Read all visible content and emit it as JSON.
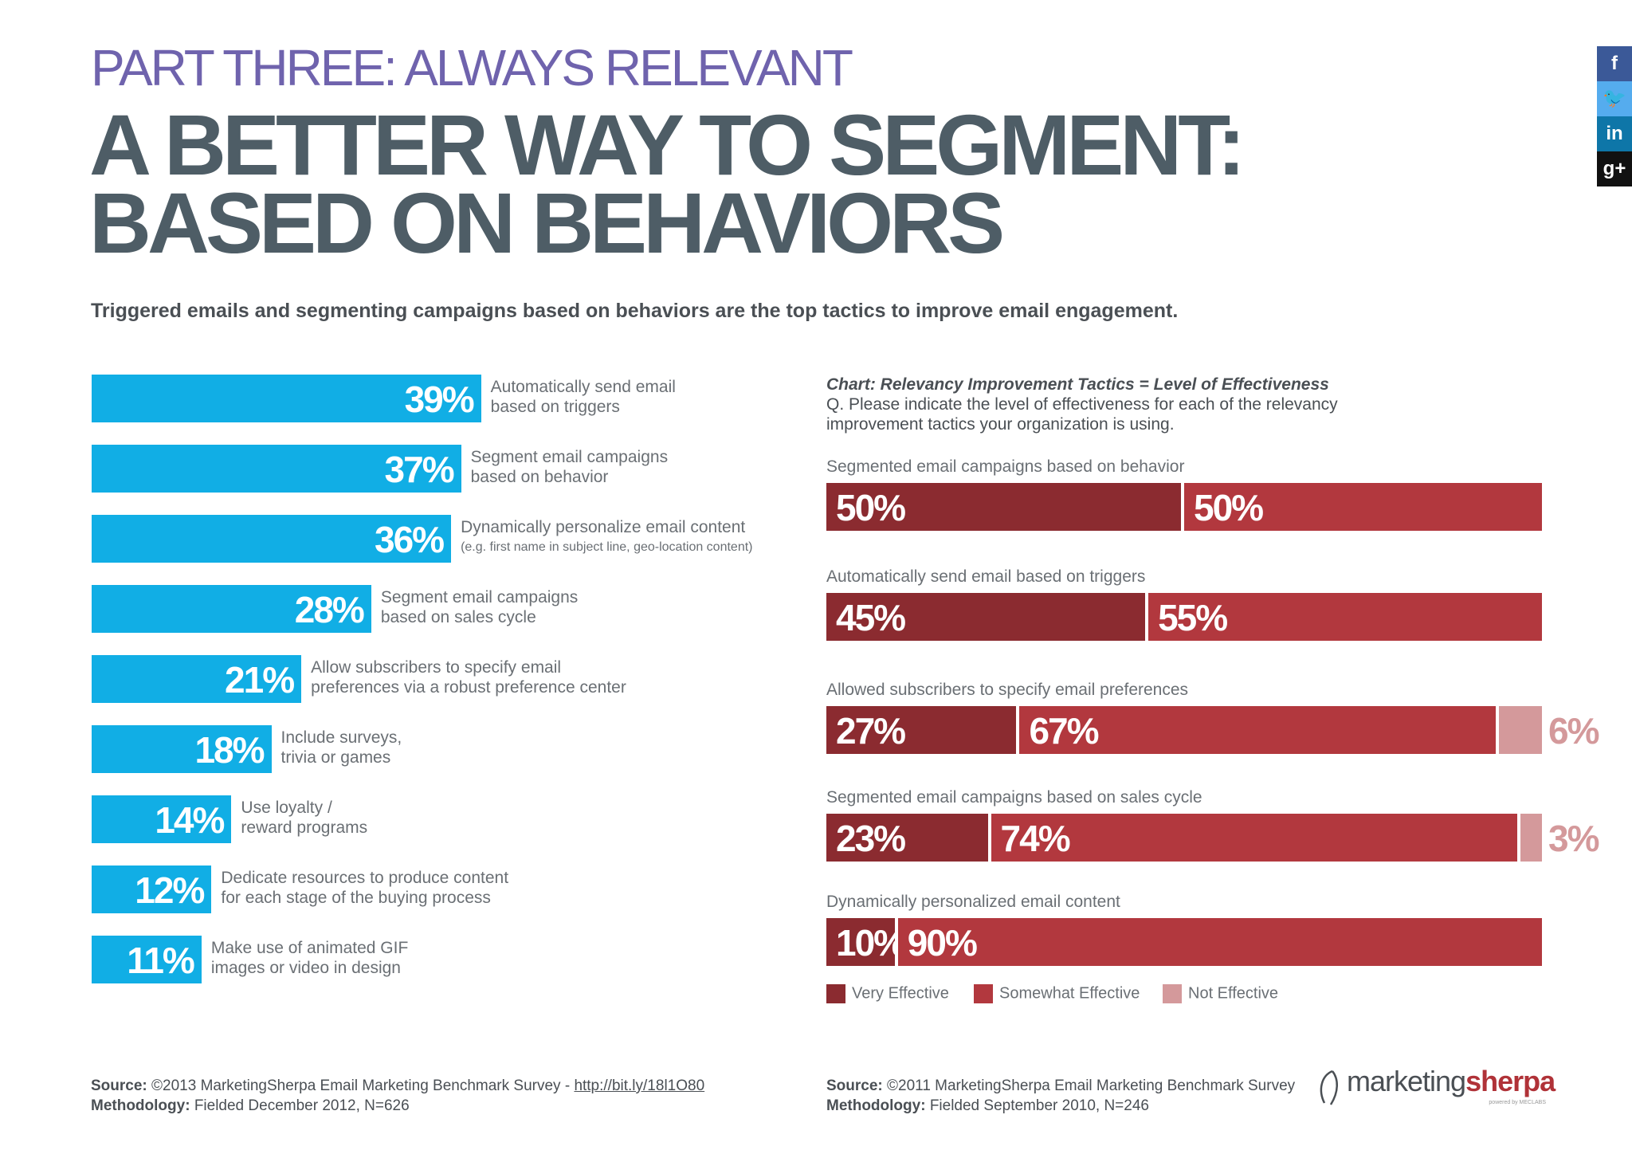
{
  "header": {
    "part": "PART THREE: ALWAYS RELEVANT",
    "title_line1": "A BETTER WAY TO SEGMENT:",
    "title_line2": "BASED ON BEHAVIORS",
    "intro": "Triggered emails and segmenting campaigns based on behaviors are the top tactics to improve email engagement."
  },
  "social": [
    {
      "icon": "facebook-icon",
      "glyph": "f",
      "color": "#3b5998"
    },
    {
      "icon": "twitter-icon",
      "glyph": "🐦",
      "color": "#55acee"
    },
    {
      "icon": "linkedin-icon",
      "glyph": "in",
      "color": "#0e76a8"
    },
    {
      "icon": "google-plus-icon",
      "glyph": "g+",
      "color": "#111111"
    }
  ],
  "chart_data": [
    {
      "type": "bar",
      "orientation": "horizontal",
      "color": "#11aee5",
      "categories": [
        "Automatically send email based on triggers",
        "Segment email campaigns based on behavior",
        "Dynamically personalize email content (e.g. first name in subject line, geo-location content)",
        "Segment email campaigns based on sales cycle",
        "Allow subscribers to specify email preferences via a robust preference center",
        "Include surveys, trivia or games",
        "Use loyalty / reward programs",
        "Dedicate resources to produce content for each stage of the buying process",
        "Make use of animated GIF images or video in design"
      ],
      "values": [
        39,
        37,
        36,
        28,
        21,
        18,
        14,
        12,
        11
      ],
      "labels": [
        {
          "line1": "Automatically send email",
          "line2": "based on triggers",
          "sub": ""
        },
        {
          "line1": "Segment email campaigns",
          "line2": "based on behavior",
          "sub": ""
        },
        {
          "line1": "Dynamically personalize email content",
          "line2": "",
          "sub": "(e.g. first name in subject line, geo-location content)"
        },
        {
          "line1": "Segment email campaigns",
          "line2": "based on sales cycle",
          "sub": ""
        },
        {
          "line1": "Allow subscribers to specify email",
          "line2": "preferences via a robust preference center",
          "sub": ""
        },
        {
          "line1": "Include surveys,",
          "line2": "trivia or games",
          "sub": ""
        },
        {
          "line1": "Use loyalty /",
          "line2": "reward programs",
          "sub": ""
        },
        {
          "line1": "Dedicate resources to produce content",
          "line2": "for each stage of the buying process",
          "sub": ""
        },
        {
          "line1": "Make use of animated GIF",
          "line2": "images or video in design",
          "sub": ""
        }
      ],
      "unit": "%"
    },
    {
      "type": "bar",
      "orientation": "horizontal",
      "stacked": true,
      "title": "Chart: Relevancy Improvement Tactics = Level of Effectiveness",
      "question_line1": "Q. Please indicate the level of effectiveness for each of the relevancy",
      "question_line2": "improvement tactics your organization is using.",
      "categories": [
        "Segmented email campaigns based on behavior",
        "Automatically send email based on triggers",
        "Allowed subscribers to specify email preferences",
        "Segmented email campaigns based on sales cycle",
        "Dynamically personalized email content"
      ],
      "series": [
        {
          "name": "Very Effective",
          "color": "#8b2b30",
          "values": [
            50,
            45,
            27,
            23,
            10
          ]
        },
        {
          "name": "Somewhat Effective",
          "color": "#b2383e",
          "values": [
            50,
            55,
            67,
            74,
            90
          ]
        },
        {
          "name": "Not Effective",
          "color": "#d4999b",
          "values": [
            0,
            0,
            6,
            3,
            0
          ]
        }
      ],
      "unit": "%",
      "legend": "bottom"
    }
  ],
  "sources": {
    "left_source_label": "Source:",
    "left_source_text": "©2013 MarketingSherpa Email Marketing Benchmark Survey -",
    "left_source_link": "http://bit.ly/18l1O80",
    "left_method_label": "Methodology:",
    "left_method_text": "Fielded December 2012, N=626",
    "right_source_label": "Source:",
    "right_source_text": "©2011 MarketingSherpa Email Marketing Benchmark Survey",
    "right_method_label": "Methodology:",
    "right_method_text": "Fielded September 2010, N=246"
  },
  "logo": {
    "part1": "marketing",
    "part2": "sherpa",
    "tagline": "powered by MECLABS"
  }
}
